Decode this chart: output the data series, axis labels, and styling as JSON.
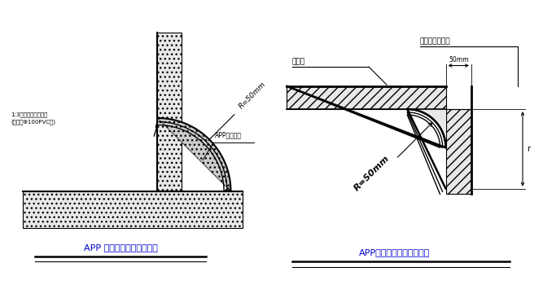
{
  "bg_color": "#ffffff",
  "title1": "APP 防水卷材基层阴角半径",
  "title2": "APP防水卷材基层阳角半径",
  "label_r50_1": "R=50mm",
  "label_r50_2": "R=50mm",
  "label_app1": "APP防水卷材",
  "label_app2": "此部分用沙浆抖",
  "label_waterproof": "防水层",
  "label_sand": "1:3水泥沙浆压实抖光\n(用盘头Φ100PVC管)",
  "label_50mm": "50mm",
  "label_r": "r",
  "text_color": "#000000",
  "line_color": "#000000"
}
